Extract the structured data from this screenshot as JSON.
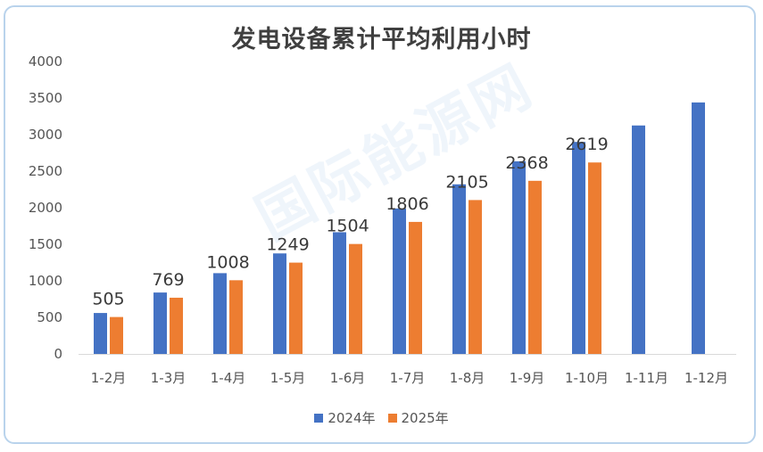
{
  "chart_data": {
    "type": "bar",
    "title": "发电设备累计平均利用小时",
    "categories": [
      "1-2月",
      "1-3月",
      "1-4月",
      "1-5月",
      "1-6月",
      "1-7月",
      "1-8月",
      "1-9月",
      "1-10月",
      "1-11月",
      "1-12月"
    ],
    "series": [
      {
        "name": "2024年",
        "color": "#4472C4",
        "values": [
          560,
          840,
          1105,
          1375,
          1665,
          1990,
          2320,
          2635,
          2900,
          3125,
          3440
        ]
      },
      {
        "name": "2025年",
        "color": "#ED7D31",
        "values": [
          505,
          769,
          1008,
          1249,
          1504,
          1806,
          2105,
          2368,
          2619,
          null,
          null
        ]
      }
    ],
    "ylim": [
      0,
      4000
    ],
    "yticks": [
      "0",
      "500",
      "1000",
      "1500",
      "2000",
      "2500",
      "3000",
      "3500",
      "4000"
    ],
    "data_labels": [
      "505",
      "769",
      "1008",
      "1249",
      "1504",
      "1806",
      "2105",
      "2368",
      "2619"
    ],
    "grid": false,
    "legend_position": "bottom"
  },
  "watermark": "国际能源网"
}
